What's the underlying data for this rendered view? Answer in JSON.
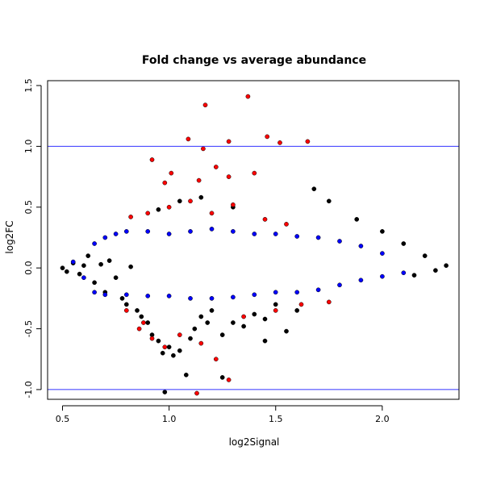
{
  "chart_data": {
    "type": "scatter",
    "title": "Fold change vs average abundance",
    "xlabel": "log2Signal",
    "ylabel": "log2FC",
    "xlim": [
      0.43,
      2.36
    ],
    "ylim": [
      -1.08,
      1.54
    ],
    "xticks": [
      0.5,
      1.0,
      1.5,
      2.0
    ],
    "xtick_labels": [
      "0.5",
      "1.0",
      "1.5",
      "2.0"
    ],
    "yticks": [
      -1.0,
      -0.5,
      0.0,
      0.5,
      1.0,
      1.5
    ],
    "ytick_labels": [
      "-1.0",
      "-0.5",
      "0.0",
      "0.5",
      "1.0",
      "1.5"
    ],
    "hlines": [
      {
        "y": 1.0,
        "color": "#3333ff"
      },
      {
        "y": -1.0,
        "color": "#3333ff"
      }
    ],
    "grid": false,
    "series": [
      {
        "color": "#000000",
        "description": "dense central band near zero fold change",
        "points": [
          [
            0.5,
            0.0
          ],
          [
            0.52,
            -0.03
          ],
          [
            0.55,
            0.04
          ],
          [
            0.58,
            -0.05
          ],
          [
            0.6,
            0.02
          ],
          [
            0.62,
            0.1
          ],
          [
            0.65,
            -0.12
          ],
          [
            0.68,
            0.03
          ],
          [
            0.7,
            -0.2
          ],
          [
            0.72,
            0.06
          ],
          [
            0.75,
            -0.08
          ],
          [
            0.78,
            -0.25
          ],
          [
            0.8,
            -0.3
          ],
          [
            0.82,
            0.01
          ],
          [
            0.85,
            -0.35
          ],
          [
            0.87,
            -0.4
          ],
          [
            0.9,
            -0.45
          ],
          [
            0.92,
            -0.55
          ],
          [
            0.95,
            -0.6
          ],
          [
            0.97,
            -0.7
          ],
          [
            1.0,
            -0.65
          ],
          [
            1.02,
            -0.72
          ],
          [
            1.05,
            -0.68
          ],
          [
            1.08,
            -0.88
          ],
          [
            1.1,
            -0.58
          ],
          [
            1.12,
            -0.5
          ],
          [
            1.15,
            -0.4
          ],
          [
            1.18,
            -0.45
          ],
          [
            1.2,
            -0.35
          ],
          [
            1.25,
            -0.55
          ],
          [
            1.3,
            -0.45
          ],
          [
            1.35,
            -0.48
          ],
          [
            1.4,
            -0.38
          ],
          [
            1.45,
            -0.42
          ],
          [
            1.5,
            -0.3
          ],
          [
            1.55,
            -0.52
          ],
          [
            1.6,
            -0.35
          ],
          [
            0.98,
            -1.02
          ],
          [
            1.25,
            -0.9
          ],
          [
            1.45,
            -0.6
          ],
          [
            1.68,
            0.65
          ],
          [
            1.75,
            0.55
          ],
          [
            1.88,
            0.4
          ],
          [
            2.0,
            0.3
          ],
          [
            2.1,
            0.2
          ],
          [
            2.2,
            0.1
          ],
          [
            2.3,
            0.02
          ],
          [
            2.25,
            -0.02
          ],
          [
            2.15,
            -0.06
          ],
          [
            0.95,
            0.48
          ],
          [
            1.05,
            0.55
          ],
          [
            1.15,
            0.58
          ],
          [
            1.3,
            0.5
          ]
        ]
      },
      {
        "color": "#0000ff",
        "description": "moderate fold change band",
        "points": [
          [
            0.55,
            0.05
          ],
          [
            0.6,
            -0.08
          ],
          [
            0.65,
            0.2
          ],
          [
            0.7,
            0.25
          ],
          [
            0.75,
            0.28
          ],
          [
            0.8,
            0.3
          ],
          [
            0.9,
            0.3
          ],
          [
            1.0,
            0.28
          ],
          [
            1.1,
            0.3
          ],
          [
            1.2,
            0.32
          ],
          [
            1.3,
            0.3
          ],
          [
            1.4,
            0.28
          ],
          [
            1.5,
            0.28
          ],
          [
            1.6,
            0.26
          ],
          [
            1.7,
            0.25
          ],
          [
            1.8,
            0.22
          ],
          [
            1.9,
            0.18
          ],
          [
            2.0,
            0.12
          ],
          [
            0.65,
            -0.2
          ],
          [
            0.7,
            -0.22
          ],
          [
            0.8,
            -0.22
          ],
          [
            0.9,
            -0.23
          ],
          [
            1.0,
            -0.23
          ],
          [
            1.1,
            -0.25
          ],
          [
            1.2,
            -0.25
          ],
          [
            1.3,
            -0.24
          ],
          [
            1.4,
            -0.22
          ],
          [
            1.5,
            -0.2
          ],
          [
            1.6,
            -0.2
          ],
          [
            1.7,
            -0.18
          ],
          [
            1.8,
            -0.14
          ],
          [
            1.9,
            -0.1
          ],
          [
            2.0,
            -0.07
          ],
          [
            2.1,
            -0.04
          ]
        ]
      },
      {
        "color": "#ff0000",
        "description": "high fold change points",
        "points": [
          [
            1.17,
            1.34
          ],
          [
            1.37,
            1.41
          ],
          [
            1.46,
            1.08
          ],
          [
            1.52,
            1.03
          ],
          [
            1.65,
            1.04
          ],
          [
            1.09,
            1.06
          ],
          [
            1.28,
            1.04
          ],
          [
            1.16,
            0.98
          ],
          [
            0.92,
            0.89
          ],
          [
            1.22,
            0.83
          ],
          [
            1.01,
            0.78
          ],
          [
            0.98,
            0.7
          ],
          [
            1.14,
            0.72
          ],
          [
            1.28,
            0.75
          ],
          [
            1.4,
            0.78
          ],
          [
            0.9,
            0.45
          ],
          [
            1.0,
            0.5
          ],
          [
            1.1,
            0.55
          ],
          [
            1.2,
            0.45
          ],
          [
            1.3,
            0.52
          ],
          [
            1.45,
            0.4
          ],
          [
            1.55,
            0.36
          ],
          [
            0.82,
            0.42
          ],
          [
            0.86,
            -0.5
          ],
          [
            0.92,
            -0.58
          ],
          [
            0.98,
            -0.65
          ],
          [
            1.05,
            -0.55
          ],
          [
            1.15,
            -0.62
          ],
          [
            1.22,
            -0.75
          ],
          [
            1.28,
            -0.92
          ],
          [
            1.13,
            -1.03
          ],
          [
            0.88,
            -0.45
          ],
          [
            1.35,
            -0.4
          ],
          [
            1.5,
            -0.35
          ],
          [
            1.62,
            -0.3
          ],
          [
            1.75,
            -0.28
          ],
          [
            0.8,
            -0.35
          ]
        ]
      }
    ]
  }
}
